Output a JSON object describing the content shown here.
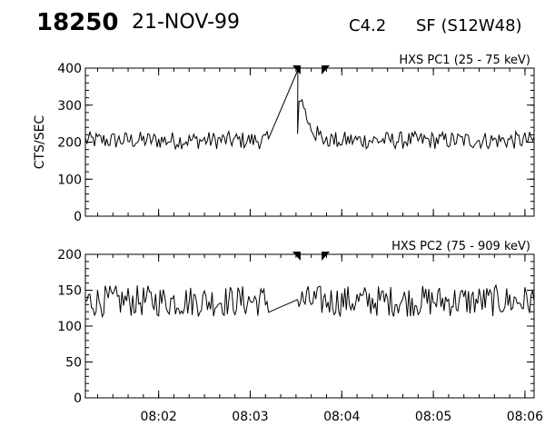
{
  "header": {
    "event_number": "18250",
    "date": "21-NOV-99",
    "goes_class": "C4.2",
    "flare": "SF (S12W48)"
  },
  "chart_data": [
    {
      "type": "line",
      "title": "HXS PC1 (25 - 75 keV)",
      "ylabel": "CTS/SEC",
      "xlabel": "",
      "ylim": [
        0,
        400
      ],
      "yticks": [
        0,
        100,
        200,
        300,
        400
      ],
      "xlim_min": [
        1.2,
        6.1
      ],
      "xticks": [
        "08:02",
        "08:03",
        "08:04",
        "08:05",
        "08:06"
      ],
      "interval_markers_min": [
        3.55,
        3.78
      ],
      "baseline": 205,
      "noise": 24,
      "gap_min": [
        3.2,
        3.5
      ],
      "peak": {
        "time_min": 3.52,
        "value": 395
      }
    },
    {
      "type": "line",
      "title": "HXS PC2 (75 - 909 keV)",
      "ylabel": "",
      "xlabel": "",
      "ylim": [
        0,
        200
      ],
      "yticks": [
        0,
        50,
        100,
        150,
        200
      ],
      "xlim_min": [
        1.2,
        6.1
      ],
      "xticks": [
        "08:02",
        "08:03",
        "08:04",
        "08:05",
        "08:06"
      ],
      "interval_markers_min": [
        3.55,
        3.78
      ],
      "baseline": 135,
      "noise": 22,
      "gap_min": [
        3.2,
        3.5
      ]
    }
  ]
}
